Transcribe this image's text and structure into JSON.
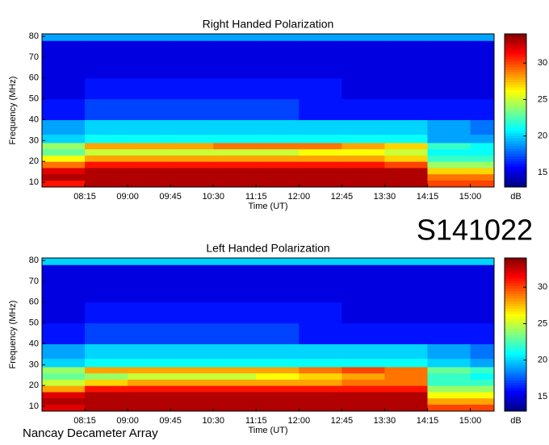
{
  "chart_data": [
    {
      "type": "heatmap",
      "title": "Right Handed Polarization",
      "x_label": "Time (UT)",
      "y_label": "Frequency (MHz)",
      "xlim": [
        "07:30",
        "15:25"
      ],
      "xticks": [
        "08:15",
        "09:00",
        "09:45",
        "10:30",
        "11:15",
        "12:00",
        "12:45",
        "13:30",
        "14:15",
        "15:00"
      ],
      "ylim": [
        7.7,
        81.2
      ],
      "yticks": [
        10,
        20,
        30,
        40,
        50,
        60,
        70,
        80
      ],
      "x_edges": [
        "07:30",
        "08:15",
        "09:00",
        "09:45",
        "10:30",
        "11:15",
        "12:00",
        "12:45",
        "13:30",
        "14:15",
        "15:00",
        "15:25"
      ],
      "y_edges": [
        7.7,
        11,
        14,
        17,
        20,
        23,
        26,
        29,
        33,
        40,
        50,
        60,
        70,
        78,
        81.2
      ],
      "z": [
        [
          31,
          33,
          33,
          33,
          33,
          33,
          33,
          33,
          33,
          30,
          30
        ],
        [
          33,
          33,
          33,
          33,
          33,
          33,
          33,
          33,
          33,
          29,
          29
        ],
        [
          32,
          33,
          33,
          33,
          33,
          33,
          33,
          33,
          33,
          27,
          27
        ],
        [
          29,
          31,
          31,
          31,
          31,
          31,
          31,
          31,
          30,
          24,
          24
        ],
        [
          26,
          28,
          28,
          28,
          28,
          28,
          28,
          28,
          27,
          22,
          22
        ],
        [
          23,
          25,
          25,
          25,
          25,
          25,
          26,
          26,
          25,
          21,
          21
        ],
        [
          24,
          28,
          28,
          28,
          29,
          29,
          29,
          28,
          27,
          22,
          21
        ],
        [
          20,
          21,
          21,
          21,
          21,
          21,
          21,
          21,
          21,
          19,
          19
        ],
        [
          19,
          20,
          20,
          20,
          20,
          20,
          20,
          20,
          20,
          19,
          18
        ],
        [
          16,
          17,
          17,
          17,
          17,
          17,
          16,
          16,
          16,
          16,
          16
        ],
        [
          15,
          16,
          16,
          16,
          16,
          16,
          16,
          15,
          15,
          15,
          15
        ],
        [
          15,
          15,
          15,
          15,
          15,
          15,
          15,
          15,
          15,
          15,
          15
        ],
        [
          15,
          15,
          15,
          15,
          15,
          15,
          15,
          15,
          15,
          15,
          15
        ],
        [
          19,
          19,
          19,
          19,
          19,
          19,
          19,
          19,
          19,
          19,
          19
        ]
      ],
      "zlim": [
        13,
        34
      ],
      "zticks": [
        15,
        20,
        25,
        30
      ],
      "colorbar_label": "dB",
      "colormap": "jet"
    },
    {
      "type": "heatmap",
      "title": "Left Handed Polarization",
      "x_label": "Time (UT)",
      "y_label": "Frequency (MHz)",
      "xlim": [
        "07:30",
        "15:25"
      ],
      "xticks": [
        "08:15",
        "09:00",
        "09:45",
        "10:30",
        "11:15",
        "12:00",
        "12:45",
        "13:30",
        "14:15",
        "15:00"
      ],
      "ylim": [
        7.7,
        81.2
      ],
      "yticks": [
        10,
        20,
        30,
        40,
        50,
        60,
        70,
        80
      ],
      "x_edges": [
        "07:30",
        "08:15",
        "09:00",
        "09:45",
        "10:30",
        "11:15",
        "12:00",
        "12:45",
        "13:30",
        "14:15",
        "15:00",
        "15:25"
      ],
      "y_edges": [
        7.7,
        11,
        14,
        17,
        20,
        23,
        26,
        29,
        33,
        40,
        50,
        60,
        70,
        78,
        81.2
      ],
      "z": [
        [
          32,
          33,
          33,
          33,
          33,
          33,
          33,
          33,
          33,
          30,
          30
        ],
        [
          33,
          33,
          33,
          33,
          33,
          33,
          33,
          33,
          33,
          28,
          28
        ],
        [
          32,
          33,
          33,
          33,
          33,
          33,
          33,
          33,
          33,
          26,
          26
        ],
        [
          28,
          31,
          31,
          31,
          31,
          31,
          31,
          31,
          31,
          24,
          24
        ],
        [
          25,
          27,
          28,
          28,
          28,
          28,
          28,
          29,
          29,
          22,
          22
        ],
        [
          23,
          24,
          25,
          25,
          25,
          26,
          27,
          28,
          29,
          22,
          21
        ],
        [
          24,
          28,
          28,
          28,
          28,
          28,
          29,
          30,
          29,
          23,
          22
        ],
        [
          20,
          21,
          21,
          21,
          21,
          21,
          21,
          21,
          21,
          20,
          19
        ],
        [
          19,
          20,
          20,
          20,
          20,
          20,
          20,
          20,
          20,
          19,
          18
        ],
        [
          16,
          17,
          17,
          17,
          17,
          17,
          16,
          16,
          16,
          16,
          16
        ],
        [
          15,
          16,
          16,
          16,
          16,
          16,
          16,
          15,
          15,
          15,
          15
        ],
        [
          15,
          15,
          15,
          15,
          15,
          15,
          15,
          15,
          15,
          15,
          15
        ],
        [
          15,
          15,
          15,
          15,
          15,
          15,
          15,
          15,
          15,
          15,
          15
        ],
        [
          20,
          20,
          20,
          20,
          20,
          20,
          20,
          20,
          20,
          20,
          20
        ]
      ],
      "zlim": [
        13,
        34
      ],
      "zticks": [
        15,
        20,
        25,
        30
      ],
      "colorbar_label": "dB",
      "colormap": "jet"
    }
  ],
  "annotations": {
    "stamp": "S141022",
    "footer": "Nancay Decameter Array"
  }
}
